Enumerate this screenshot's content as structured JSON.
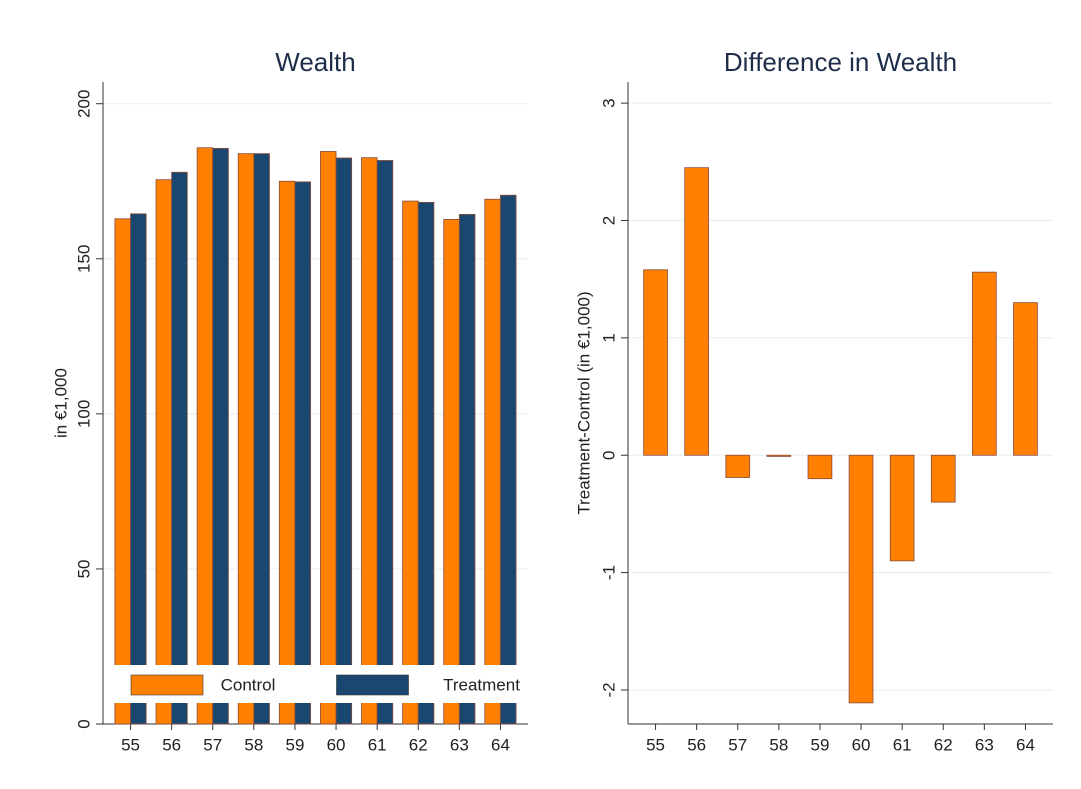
{
  "chart_data": [
    {
      "type": "bar",
      "title": "Wealth",
      "y_label": "in €1,000",
      "categories": [
        "55",
        "56",
        "57",
        "58",
        "59",
        "60",
        "61",
        "62",
        "63",
        "64"
      ],
      "series": [
        {
          "name": "Control",
          "color": "#ff8000",
          "values": [
            162.9,
            175.5,
            185.8,
            183.9,
            175.0,
            184.6,
            182.6,
            168.6,
            162.7,
            169.2
          ]
        },
        {
          "name": "Treatment",
          "color": "#1a476f",
          "values": [
            164.5,
            177.9,
            185.6,
            183.9,
            174.8,
            182.5,
            181.7,
            168.2,
            164.3,
            170.5
          ]
        }
      ],
      "ylim": [
        0,
        207
      ],
      "yticks": [
        0,
        50,
        100,
        150,
        200
      ],
      "grid": true,
      "legend": "bottom"
    },
    {
      "type": "bar",
      "title": "Difference in Wealth",
      "y_label": "Treatment-Control (in €1,000)",
      "categories": [
        "55",
        "56",
        "57",
        "58",
        "59",
        "60",
        "61",
        "62",
        "63",
        "64"
      ],
      "series": [
        {
          "color": "#ff8000",
          "values": [
            1.58,
            2.45,
            -0.19,
            -0.01,
            -0.2,
            -2.11,
            -0.9,
            -0.4,
            1.56,
            1.3
          ]
        }
      ],
      "ylim": [
        -2.29,
        3.18
      ],
      "yticks": [
        -2,
        -1,
        0,
        1,
        2,
        3
      ],
      "grid": true
    }
  ]
}
